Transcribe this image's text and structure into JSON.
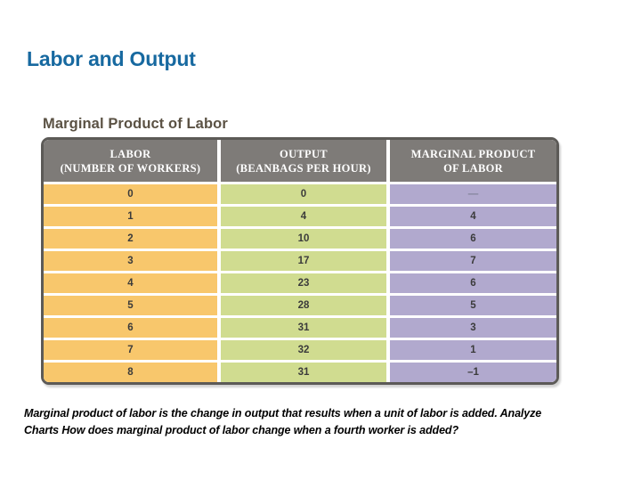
{
  "page": {
    "title": "Labor and Output"
  },
  "figure": {
    "title": "Marginal Product of Labor"
  },
  "chart_data": {
    "type": "table",
    "title": "Marginal Product of Labor",
    "columns": [
      {
        "line1": "LABOR",
        "line2": "(NUMBER OF WORKERS)"
      },
      {
        "line1": "OUTPUT",
        "line2": "(BEANBAGS PER HOUR)"
      },
      {
        "line1": "MARGINAL PRODUCT",
        "line2": "OF LABOR"
      }
    ],
    "rows": [
      [
        "0",
        "0",
        "—"
      ],
      [
        "1",
        "4",
        "4"
      ],
      [
        "2",
        "10",
        "6"
      ],
      [
        "3",
        "17",
        "7"
      ],
      [
        "4",
        "23",
        "6"
      ],
      [
        "5",
        "28",
        "5"
      ],
      [
        "6",
        "31",
        "3"
      ],
      [
        "7",
        "32",
        "1"
      ],
      [
        "8",
        "31",
        "–1"
      ]
    ],
    "column_colors": [
      "#F8C76C",
      "#D0DC90",
      "#B1A9CE"
    ],
    "header_bg": "#7E7B78",
    "border_color": "#5C5A57"
  },
  "caption": {
    "line1": "Marginal product of labor is the change in output that results when a unit of labor is added. Analyze",
    "line2": "Charts How does marginal product of labor change when a fourth worker is added?"
  },
  "colors": {
    "page_title_blue": "#1769A0",
    "figure_title_brown": "#5B5244"
  }
}
